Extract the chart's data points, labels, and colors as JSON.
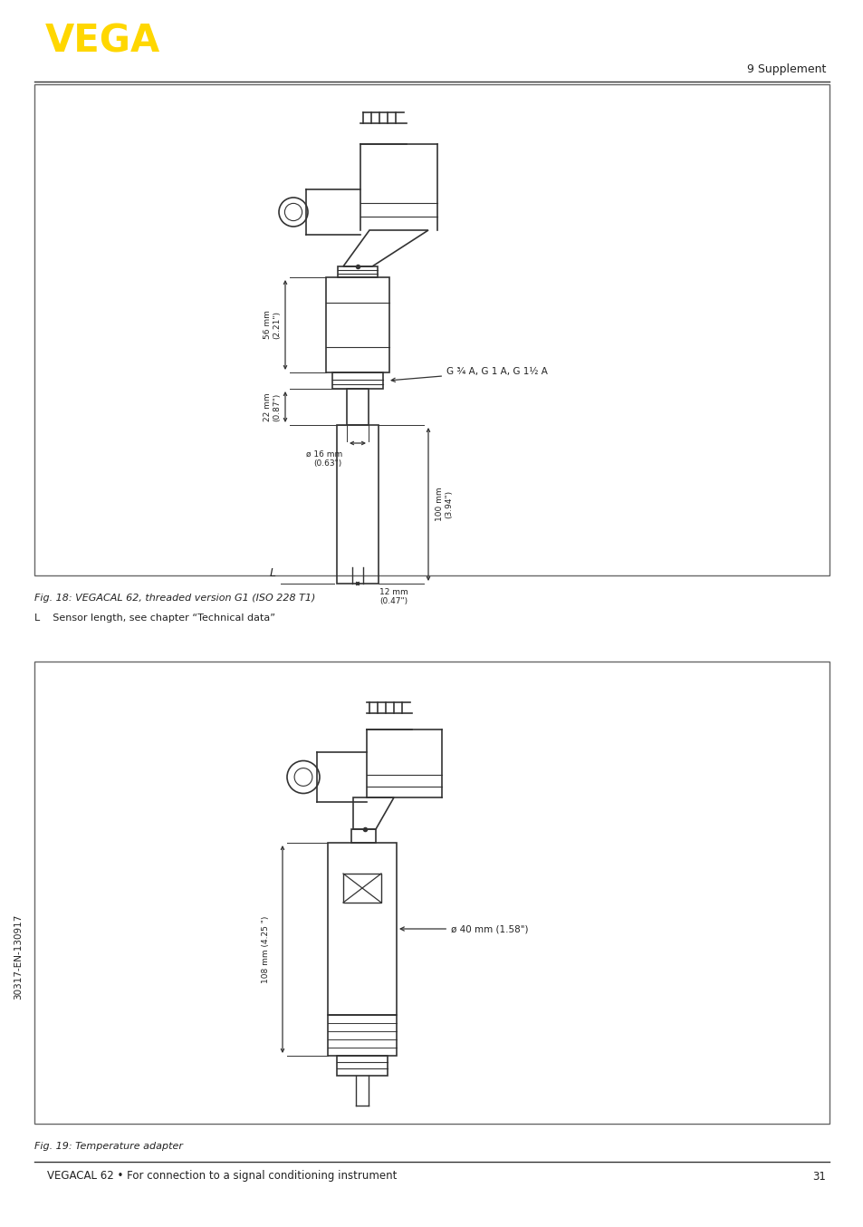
{
  "page_width": 9.54,
  "page_height": 13.54,
  "dpi": 100,
  "background_color": "#ffffff",
  "logo_text": "VEGA",
  "logo_color": "#FFD700",
  "header_right": "9 Supplement",
  "footer_text": "VEGACAL 62 • For connection to a signal conditioning instrument",
  "footer_page": "31",
  "side_text": "30317-EN-130917",
  "fig1_caption_line1": "Fig. 18: VEGACAL 62, threaded version G1 (ISO 228 T1)",
  "fig1_caption_line2": "L    Sensor length, see chapter “Technical data”",
  "fig2_caption": "Fig. 19: Temperature adapter",
  "line_color": "#333333",
  "text_color": "#222222",
  "dim_fontsize": 6.5,
  "caption_fontsize": 8.0
}
